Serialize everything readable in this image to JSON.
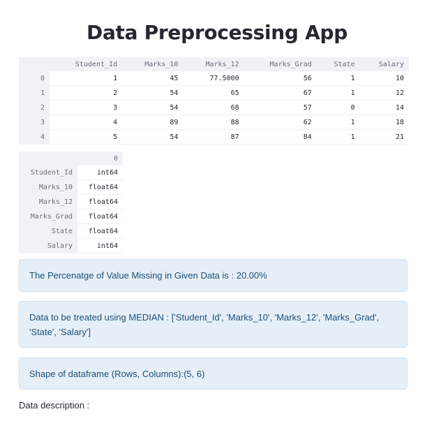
{
  "page": {
    "title": "Data Preprocessing App"
  },
  "main_table": {
    "columns": [
      "Student_Id",
      "Marks_10",
      "Marks_12",
      "Marks_Grad",
      "State",
      "Salary"
    ],
    "rows": [
      {
        "index": "0",
        "cells": [
          "1",
          "45",
          "77.5000",
          "56",
          "1",
          "10"
        ]
      },
      {
        "index": "1",
        "cells": [
          "2",
          "54",
          "65",
          "67",
          "1",
          "12"
        ]
      },
      {
        "index": "2",
        "cells": [
          "3",
          "54",
          "68",
          "57",
          "0",
          "14"
        ]
      },
      {
        "index": "3",
        "cells": [
          "4",
          "89",
          "88",
          "62",
          "1",
          "18"
        ]
      },
      {
        "index": "4",
        "cells": [
          "5",
          "54",
          "87",
          "84",
          "1",
          "21"
        ]
      }
    ]
  },
  "dtype_table": {
    "header": "0",
    "rows": [
      {
        "name": "Student_Id",
        "dtype": "int64"
      },
      {
        "name": "Marks_10",
        "dtype": "float64"
      },
      {
        "name": "Marks_12",
        "dtype": "float64"
      },
      {
        "name": "Marks_Grad",
        "dtype": "float64"
      },
      {
        "name": "State",
        "dtype": "float64"
      },
      {
        "name": "Salary",
        "dtype": "int64"
      }
    ]
  },
  "info_boxes": {
    "missing": "The Percenatge of Value Missing in Given Data is : 20.00%",
    "median": "Data to be treated using MEDIAN : ['Student_Id', 'Marks_10', 'Marks_12', 'Marks_Grad', 'State', 'Salary']",
    "shape": "Shape of dataframe (Rows, Columns):(5, 6)"
  },
  "description_label": "Data description :"
}
